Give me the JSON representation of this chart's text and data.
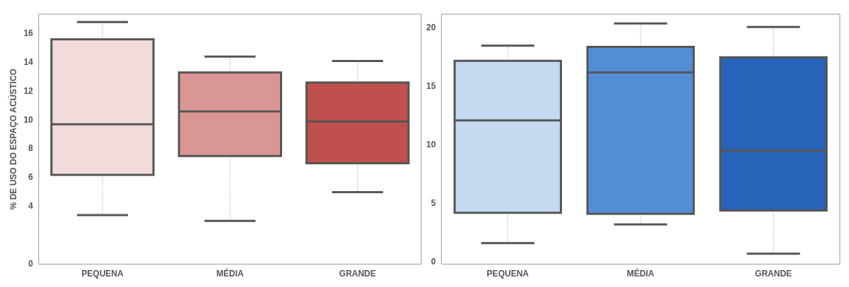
{
  "chart_data": [
    {
      "type": "box",
      "ylabel": "% DE USO DO ESPAÇO ACÚSTICO",
      "categories": [
        "PEQUENA",
        "MÉDIA",
        "GRANDE"
      ],
      "colors": [
        "#f2dcdb",
        "#da9694",
        "#c0504d"
      ],
      "boxes": [
        {
          "low": 3.4,
          "q1": 6.2,
          "median": 9.7,
          "q3": 15.6,
          "high": 16.8
        },
        {
          "low": 3.0,
          "q1": 7.5,
          "median": 10.6,
          "q3": 13.3,
          "high": 14.4
        },
        {
          "low": 5.0,
          "q1": 7.0,
          "median": 9.9,
          "q3": 12.6,
          "high": 14.1
        }
      ],
      "ylim": [
        0,
        17.35
      ],
      "yticks": [
        0,
        4,
        6,
        8,
        10,
        12,
        14,
        16
      ],
      "grid": false
    },
    {
      "type": "box",
      "categories": [
        "PEQUENA",
        "MÉDIA",
        "GRANDE"
      ],
      "colors": [
        "#c5d9f1",
        "#538dd5",
        "#2763b8"
      ],
      "boxes": [
        {
          "low": 1.6,
          "q1": 4.2,
          "median": 12.1,
          "q3": 17.2,
          "high": 18.5
        },
        {
          "low": 3.2,
          "q1": 4.1,
          "median": 16.2,
          "q3": 18.4,
          "high": 20.4
        },
        {
          "low": 0.7,
          "q1": 4.4,
          "median": 9.5,
          "q3": 17.5,
          "high": 20.1
        }
      ],
      "ylim": [
        -0.2,
        21.2
      ],
      "yticks": [
        0,
        5,
        10,
        15,
        20
      ],
      "grid": false
    }
  ]
}
